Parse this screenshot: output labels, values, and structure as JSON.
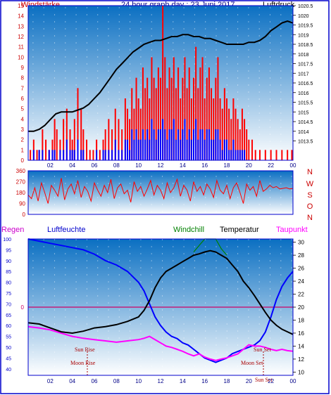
{
  "header": {
    "left": "Windstärke",
    "center": "24 hour graph day : 23 Juni 2017",
    "right": "Luftdruck"
  },
  "dir_labels": [
    "N",
    "W",
    "S",
    "O",
    "N"
  ],
  "legend3": {
    "regen": "Regen",
    "luftfeuchte": "Luftfeuchte",
    "windchill": "Windchill",
    "temperatur": "Temperatur",
    "taupunkt": "Taupunkt"
  },
  "astro": {
    "sun_rise": "Sun Rise",
    "moon_rise": "Moon Rise",
    "sun_set": "Sun Set",
    "moon_set": "Moon Set",
    "sun_set2": "Sun Set"
  },
  "colors": {
    "frame": "#0000cc",
    "sky_top": "#0a6fc2",
    "sky_bottom": "#ffffff",
    "gust": "#ff0000",
    "wind": "#0000ff",
    "pressure": "#000000",
    "direction": "#ff0000",
    "humidity": "#0000ff",
    "temperature": "#000000",
    "windchill": "#008000",
    "dewpoint": "#ff00ff",
    "rain_line": "#cc0066"
  },
  "chart_data": [
    {
      "type": "bar",
      "name_hint": "wind-pressure",
      "xlabel": "",
      "x_ticks": [
        "02",
        "04",
        "06",
        "08",
        "10",
        "12",
        "14",
        "16",
        "18",
        "20",
        "22",
        "00"
      ],
      "x_range_hours": [
        0,
        24
      ],
      "wind_ylim": [
        0,
        15
      ],
      "wind_ticks": [
        "0",
        "1",
        "2",
        "3",
        "4",
        "5",
        "6",
        "7",
        "8",
        "9",
        "10",
        "11",
        "12",
        "13",
        "14",
        "15"
      ],
      "pressure_ylim": [
        1012.5,
        1020.5
      ],
      "pressure_ticks": [
        "1013.5",
        "1014",
        "1014.5",
        "1015",
        "1015.5",
        "1016",
        "1016.5",
        "1017",
        "1017.5",
        "1018",
        "1018.5",
        "1019",
        "1019.5",
        "1020",
        "1020.5"
      ],
      "pressure_series": {
        "name": "Luftdruck",
        "hours": [
          0,
          0.5,
          1,
          1.5,
          2,
          2.5,
          3,
          3.5,
          4,
          4.5,
          5,
          5.5,
          6,
          6.5,
          7,
          7.5,
          8,
          8.5,
          9,
          9.5,
          10,
          10.5,
          11,
          11.5,
          12,
          12.5,
          13,
          13.5,
          14,
          14.5,
          15,
          15.5,
          16,
          16.5,
          17,
          17.5,
          18,
          18.5,
          19,
          19.5,
          20,
          20.5,
          21,
          21.5,
          22,
          22.5,
          23,
          23.5,
          24
        ],
        "values": [
          1014.0,
          1014.0,
          1014.1,
          1014.3,
          1014.6,
          1014.9,
          1015.0,
          1015.0,
          1015.0,
          1015.1,
          1015.2,
          1015.4,
          1015.7,
          1016.0,
          1016.4,
          1016.8,
          1017.2,
          1017.5,
          1017.8,
          1018.1,
          1018.3,
          1018.5,
          1018.6,
          1018.7,
          1018.7,
          1018.8,
          1018.9,
          1018.9,
          1019.0,
          1019.0,
          1018.9,
          1018.9,
          1018.8,
          1018.8,
          1018.7,
          1018.6,
          1018.5,
          1018.5,
          1018.5,
          1018.5,
          1018.6,
          1018.6,
          1018.7,
          1018.9,
          1019.2,
          1019.4,
          1019.6,
          1019.7,
          1019.6
        ]
      },
      "gust_series": {
        "name": "",
        "hours": [
          0.2,
          0.5,
          0.8,
          1.0,
          1.3,
          1.6,
          1.9,
          2.2,
          2.4,
          2.6,
          2.9,
          3.2,
          3.5,
          3.8,
          4.0,
          4.2,
          4.5,
          4.8,
          5.0,
          5.3,
          5.6,
          5.9,
          6.2,
          6.5,
          6.8,
          7.0,
          7.3,
          7.6,
          7.9,
          8.2,
          8.5,
          8.8,
          9.0,
          9.2,
          9.4,
          9.6,
          9.8,
          10.0,
          10.2,
          10.4,
          10.6,
          10.8,
          11.0,
          11.2,
          11.4,
          11.6,
          11.8,
          12.0,
          12.2,
          12.4,
          12.6,
          12.8,
          13.0,
          13.2,
          13.4,
          13.6,
          13.8,
          14.0,
          14.2,
          14.4,
          14.6,
          14.8,
          15.0,
          15.2,
          15.4,
          15.6,
          15.8,
          16.0,
          16.2,
          16.4,
          16.6,
          16.8,
          17.0,
          17.2,
          17.4,
          17.6,
          17.8,
          18.0,
          18.2,
          18.4,
          18.6,
          18.8,
          19.0,
          19.2,
          19.4,
          19.6,
          19.8,
          20.0,
          20.3,
          20.6,
          21.0,
          21.5,
          22.0,
          22.5,
          23.0,
          23.5,
          23.9
        ],
        "values": [
          1,
          2,
          1,
          1,
          3,
          2,
          1,
          2,
          4,
          3,
          2,
          4,
          5,
          3,
          2,
          4,
          7,
          5,
          3,
          2,
          1,
          1,
          2,
          1,
          2,
          3,
          4,
          3,
          5,
          4,
          3,
          6,
          5,
          4,
          7,
          5,
          8,
          6,
          5,
          9,
          7,
          8,
          6,
          10,
          8,
          7,
          9,
          8,
          15,
          10,
          7,
          9,
          8,
          10,
          7,
          9,
          6,
          8,
          10,
          7,
          9,
          6,
          8,
          11,
          7,
          9,
          10,
          6,
          8,
          9,
          7,
          6,
          8,
          10,
          6,
          5,
          7,
          6,
          5,
          4,
          6,
          5,
          4,
          3,
          5,
          4,
          3,
          2,
          2,
          1,
          1,
          1,
          1,
          1,
          1,
          1,
          1
        ]
      },
      "wind_series": {
        "name": "",
        "hours": [
          0.2,
          0.5,
          0.8,
          1.0,
          1.3,
          1.6,
          1.9,
          2.2,
          2.4,
          2.6,
          2.9,
          3.2,
          3.5,
          3.8,
          4.0,
          4.2,
          4.5,
          4.8,
          5.0,
          5.3,
          5.6,
          5.9,
          6.2,
          6.5,
          6.8,
          7.0,
          7.3,
          7.6,
          7.9,
          8.2,
          8.5,
          8.8,
          9.0,
          9.2,
          9.4,
          9.6,
          9.8,
          10.0,
          10.2,
          10.4,
          10.6,
          10.8,
          11.0,
          11.2,
          11.4,
          11.6,
          11.8,
          12.0,
          12.2,
          12.4,
          12.6,
          12.8,
          13.0,
          13.2,
          13.4,
          13.6,
          13.8,
          14.0,
          14.2,
          14.4,
          14.6,
          14.8,
          15.0,
          15.2,
          15.4,
          15.6,
          15.8,
          16.0,
          16.2,
          16.4,
          16.6,
          16.8,
          17.0,
          17.2,
          17.4,
          17.6,
          17.8,
          18.0,
          18.2,
          18.4,
          18.6,
          18.8,
          19.0,
          19.2,
          19.4,
          19.6,
          19.8,
          20.0,
          20.3,
          20.6,
          21.0,
          21.5,
          22.0,
          22.5,
          23.0,
          23.5,
          23.9
        ],
        "values": [
          0,
          1,
          0,
          1,
          1,
          0,
          1,
          1,
          1,
          0,
          1,
          1,
          2,
          1,
          1,
          1,
          2,
          1,
          1,
          0,
          0,
          0,
          1,
          0,
          1,
          1,
          1,
          1,
          2,
          1,
          1,
          2,
          2,
          1,
          3,
          2,
          3,
          2,
          2,
          3,
          2,
          3,
          2,
          4,
          3,
          2,
          3,
          3,
          4,
          3,
          2,
          3,
          3,
          4,
          2,
          3,
          2,
          3,
          4,
          2,
          3,
          2,
          3,
          4,
          2,
          3,
          3,
          2,
          3,
          3,
          2,
          2,
          3,
          3,
          2,
          1,
          2,
          2,
          1,
          1,
          2,
          1,
          1,
          1,
          1,
          1,
          0,
          0,
          0,
          0,
          0,
          0,
          0,
          0,
          0,
          0,
          0
        ]
      }
    },
    {
      "type": "line",
      "name_hint": "wind-direction",
      "x_range_hours": [
        0,
        24
      ],
      "ylim": [
        0,
        360
      ],
      "y_ticks": [
        "0",
        "90",
        "180",
        "270",
        "360"
      ],
      "hours": [
        0.0,
        0.3,
        0.6,
        0.9,
        1.2,
        1.5,
        1.8,
        2.1,
        2.4,
        2.7,
        3.0,
        3.3,
        3.6,
        3.9,
        4.2,
        4.5,
        4.8,
        5.1,
        5.4,
        5.7,
        6.0,
        6.3,
        6.6,
        6.9,
        7.2,
        7.5,
        7.8,
        8.1,
        8.4,
        8.7,
        9.0,
        9.3,
        9.6,
        9.9,
        10.2,
        10.5,
        10.8,
        11.1,
        11.4,
        11.7,
        12.0,
        12.3,
        12.6,
        12.9,
        13.2,
        13.5,
        13.8,
        14.1,
        14.4,
        14.7,
        15.0,
        15.3,
        15.6,
        15.9,
        16.2,
        16.5,
        16.8,
        17.1,
        17.4,
        17.7,
        18.0,
        18.3,
        18.6,
        18.9,
        19.2,
        19.5,
        19.8,
        20.1,
        20.4,
        20.7,
        21.0,
        21.3,
        21.6,
        21.9,
        22.2,
        22.5,
        22.8,
        23.1,
        23.4,
        23.7,
        24.0
      ],
      "values": [
        160,
        130,
        220,
        110,
        260,
        180,
        90,
        240,
        200,
        150,
        300,
        120,
        210,
        250,
        170,
        280,
        140,
        230,
        190,
        110,
        260,
        200,
        150,
        240,
        180,
        290,
        130,
        220,
        250,
        170,
        200,
        100,
        270,
        190,
        230,
        150,
        210,
        280,
        160,
        240,
        200,
        130,
        260,
        180,
        220,
        290,
        150,
        240,
        200,
        110,
        270,
        190,
        230,
        160,
        250,
        210,
        140,
        280,
        200,
        170,
        240,
        130,
        220,
        260,
        180,
        90,
        250,
        200,
        230,
        150,
        280,
        190,
        210,
        240,
        220,
        230,
        210,
        215,
        220,
        210,
        215
      ]
    },
    {
      "type": "line",
      "name_hint": "temp-humidity",
      "x_range_hours": [
        0,
        24
      ],
      "x_ticks": [
        "02",
        "04",
        "06",
        "08",
        "10",
        "12",
        "14",
        "16",
        "18",
        "20",
        "22",
        "00"
      ],
      "humidity_ylim": [
        37,
        100
      ],
      "humidity_ticks": [
        "40",
        "45",
        "50",
        "55",
        "60",
        "65",
        "70",
        "75",
        "80",
        "85",
        "90",
        "95",
        "100"
      ],
      "rain_ticks": [
        "0"
      ],
      "temp_ylim": [
        9.5,
        30.5
      ],
      "temp_ticks": [
        "10",
        "12",
        "14",
        "16",
        "18",
        "20",
        "22",
        "24",
        "26",
        "28",
        "30"
      ],
      "hours": [
        0,
        1,
        2,
        3,
        4,
        5,
        6,
        7,
        8,
        9,
        10,
        10.5,
        11,
        11.5,
        12,
        12.5,
        13,
        13.5,
        14,
        14.5,
        15,
        15.5,
        16,
        16.5,
        17,
        17.5,
        18,
        18.5,
        19,
        19.5,
        20,
        20.5,
        21,
        21.5,
        22,
        22.5,
        23,
        23.5,
        24
      ],
      "series": [
        {
          "name": "Luftfeuchte",
          "axis": "left",
          "values": [
            100,
            99,
            98,
            97,
            96,
            95,
            93,
            90,
            88,
            85,
            80,
            76,
            70,
            64,
            60,
            57,
            55,
            54,
            52,
            51,
            49,
            47,
            45,
            44,
            43,
            44,
            45,
            47,
            48,
            49,
            50,
            51,
            53,
            57,
            64,
            72,
            78,
            82,
            85
          ]
        },
        {
          "name": "Temperatur",
          "axis": "right",
          "values": [
            17.6,
            17.4,
            16.8,
            16.2,
            16.0,
            16.3,
            16.8,
            17.0,
            17.3,
            17.8,
            18.5,
            19.5,
            21.0,
            23.0,
            24.5,
            25.5,
            26.0,
            26.5,
            27.0,
            27.5,
            28.0,
            28.2,
            28.5,
            28.7,
            28.5,
            28.0,
            27.5,
            26.5,
            25.5,
            24.0,
            23.0,
            21.8,
            20.5,
            19.2,
            18.0,
            17.2,
            16.6,
            16.2,
            15.8
          ]
        },
        {
          "name": "Windchill",
          "axis": "right",
          "values": [
            null,
            null,
            null,
            null,
            null,
            null,
            null,
            null,
            null,
            null,
            null,
            null,
            null,
            null,
            null,
            null,
            null,
            null,
            null,
            null,
            28.5,
            29.5,
            30.5,
            30.5,
            30.5,
            29.0,
            28.0,
            null,
            null,
            null,
            null,
            null,
            null,
            null,
            null,
            null,
            null,
            null,
            null
          ]
        },
        {
          "name": "Taupunkt",
          "axis": "right",
          "values": [
            17.0,
            16.8,
            16.5,
            16.0,
            15.5,
            15.2,
            15.0,
            14.8,
            14.6,
            14.8,
            15.0,
            15.2,
            15.5,
            15.0,
            14.5,
            14.0,
            13.8,
            13.5,
            13.2,
            12.8,
            12.5,
            12.8,
            12.3,
            12.0,
            11.8,
            12.0,
            12.2,
            12.5,
            12.8,
            13.5,
            14.2,
            14.0,
            14.0,
            13.8,
            13.5,
            13.3,
            13.5,
            13.3,
            13.2
          ]
        }
      ],
      "rain_value": 0
    }
  ]
}
